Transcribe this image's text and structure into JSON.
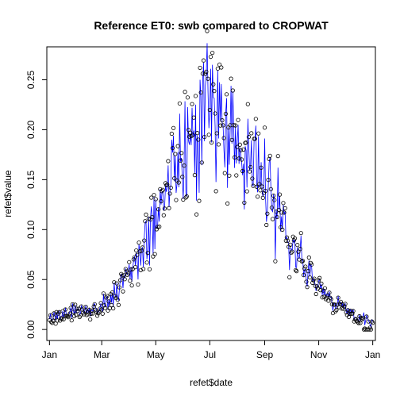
{
  "chart_data": {
    "type": "scatter",
    "title": "Reference ET0: swb compared to CROPWAT",
    "xlabel": "refet$date",
    "ylabel": "refet$value",
    "x_tick_labels": [
      "Jan",
      "Mar",
      "May",
      "Jul",
      "Sep",
      "Nov",
      "Jan"
    ],
    "x_tick_days": [
      0,
      59,
      120,
      181,
      243,
      304,
      365
    ],
    "y_ticks": [
      0.0,
      0.05,
      0.1,
      0.15,
      0.2,
      0.25
    ],
    "y_tick_labels": [
      "0.00",
      "0.05",
      "0.10",
      "0.15",
      "0.20",
      "0.25"
    ],
    "xlim_days": [
      -3,
      368
    ],
    "ylim": [
      -0.011,
      0.283
    ],
    "grid": false,
    "legend": "none",
    "series": [
      {
        "style": "open circles",
        "color": "#000000",
        "seasonal_profile": {
          "day": [
            0,
            15,
            30,
            45,
            59,
            75,
            90,
            105,
            120,
            135,
            150,
            165,
            181,
            195,
            210,
            225,
            243,
            260,
            275,
            290,
            304,
            320,
            335,
            350,
            365
          ],
          "value": [
            0.012,
            0.016,
            0.018,
            0.016,
            0.022,
            0.038,
            0.055,
            0.075,
            0.11,
            0.15,
            0.18,
            0.205,
            0.225,
            0.215,
            0.19,
            0.175,
            0.15,
            0.118,
            0.085,
            0.06,
            0.04,
            0.028,
            0.018,
            0.01,
            0.005
          ]
        }
      },
      {
        "style": "line",
        "color": "#0000ff",
        "seasonal_profile": {
          "day": [
            0,
            15,
            30,
            45,
            59,
            75,
            90,
            105,
            120,
            135,
            150,
            165,
            181,
            195,
            210,
            225,
            243,
            260,
            275,
            290,
            304,
            320,
            335,
            350,
            365
          ],
          "value": [
            0.014,
            0.017,
            0.019,
            0.018,
            0.023,
            0.039,
            0.056,
            0.076,
            0.11,
            0.148,
            0.178,
            0.202,
            0.222,
            0.212,
            0.188,
            0.172,
            0.148,
            0.116,
            0.084,
            0.06,
            0.041,
            0.029,
            0.019,
            0.012,
            0.007
          ]
        }
      }
    ],
    "notes_visible": {
      "peak_points": [
        {
          "day": 184,
          "value": 0.277
        },
        {
          "day": 182,
          "value": 0.273
        },
        {
          "day": 170,
          "value": 0.262
        },
        {
          "day": 176,
          "value": 0.256
        }
      ],
      "end_zero_points_days": [
        355,
        357,
        359,
        361,
        363
      ]
    }
  }
}
